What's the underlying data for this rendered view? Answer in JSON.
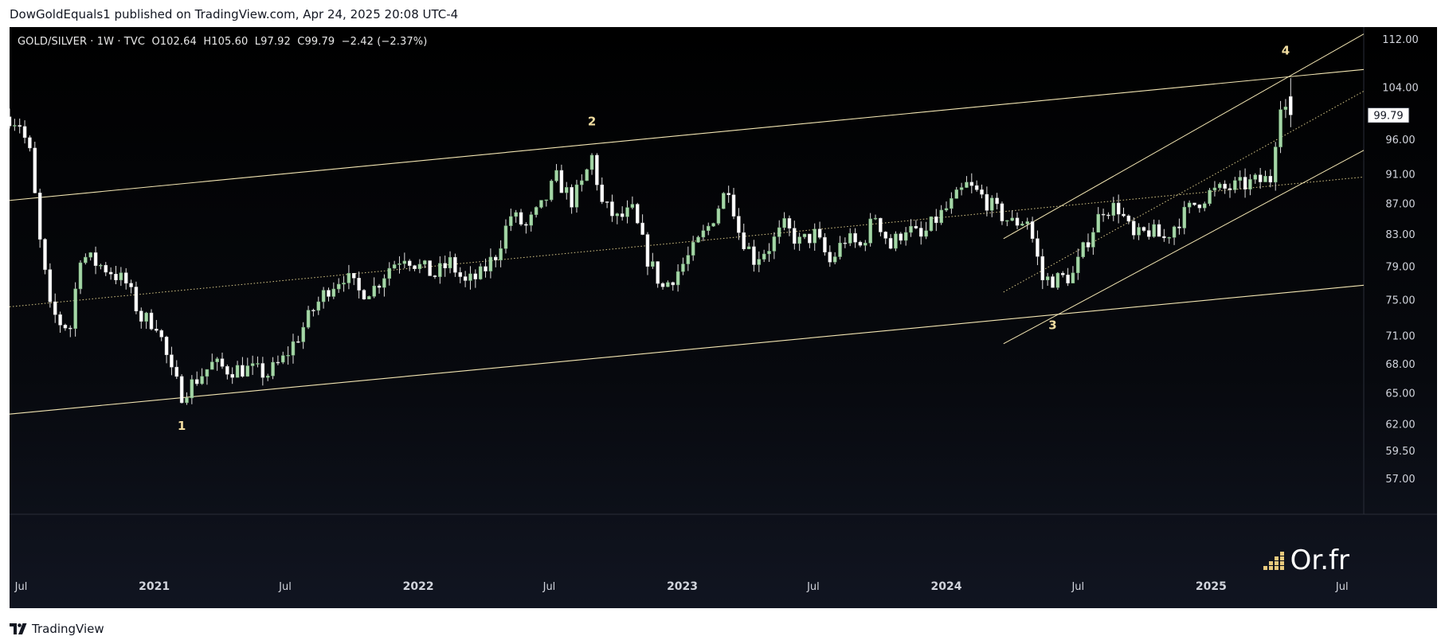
{
  "header": {
    "publisher_line": "DowGoldEquals1 published on TradingView.com, Apr 24, 2025 20:08 UTC-4"
  },
  "legend": {
    "symbol_line": "GOLD/SILVER · 1W · TVC  O102.64  H105.60  L97.92  C99.79  −2.42 (−2.37%)"
  },
  "footer": {
    "brand": "TradingView"
  },
  "watermark": {
    "text": "Or.fr"
  },
  "colors": {
    "up_body": "#a5d6a7",
    "down_body": "#ffffff",
    "wick": "#e0e0e0",
    "trendline": "#f3e6b3",
    "midline": "#d8c98a",
    "axis_text": "#d1d4dc",
    "wave_label": "#f0dca0"
  },
  "chart_data": {
    "type": "candlestick",
    "symbol": "GOLD/SILVER",
    "interval": "1W",
    "exchange": "TVC",
    "last_bar": {
      "open": 102.64,
      "high": 105.6,
      "low": 97.92,
      "close": 99.79,
      "change": -2.42,
      "change_pct": -2.37
    },
    "last_price_label": "99.79",
    "y_axis": {
      "scale": "log",
      "ticks": [
        "112.00",
        "104.00",
        "96.00",
        "91.00",
        "87.00",
        "83.00",
        "79.00",
        "75.00",
        "71.00",
        "68.00",
        "65.00",
        "62.00",
        "59.50",
        "57.00"
      ]
    },
    "x_axis": {
      "range": [
        "2020-06-15",
        "2025-07-31"
      ],
      "labels": [
        {
          "text": "Jul",
          "date": "2020-07-01",
          "bold": false
        },
        {
          "text": "2021",
          "date": "2021-01-01",
          "bold": true
        },
        {
          "text": "Jul",
          "date": "2021-07-01",
          "bold": false
        },
        {
          "text": "2022",
          "date": "2022-01-01",
          "bold": true
        },
        {
          "text": "Jul",
          "date": "2022-07-01",
          "bold": false
        },
        {
          "text": "2023",
          "date": "2023-01-01",
          "bold": true
        },
        {
          "text": "Jul",
          "date": "2023-07-01",
          "bold": false
        },
        {
          "text": "2024",
          "date": "2024-01-01",
          "bold": true
        },
        {
          "text": "Jul",
          "date": "2024-07-01",
          "bold": false
        },
        {
          "text": "2025",
          "date": "2025-01-01",
          "bold": true
        },
        {
          "text": "Jul",
          "date": "2025-07-01",
          "bold": false
        }
      ]
    },
    "close_path": [
      [
        "2020-06-15",
        99.5
      ],
      [
        "2020-06-29",
        98.5
      ],
      [
        "2020-07-13",
        94.0
      ],
      [
        "2020-07-27",
        82.0
      ],
      [
        "2020-08-10",
        74.0
      ],
      [
        "2020-08-24",
        72.5
      ],
      [
        "2020-09-07",
        72.0
      ],
      [
        "2020-09-21",
        80.5
      ],
      [
        "2020-10-12",
        79.5
      ],
      [
        "2020-11-02",
        78.5
      ],
      [
        "2020-11-23",
        77.0
      ],
      [
        "2020-12-14",
        73.0
      ],
      [
        "2021-01-04",
        72.5
      ],
      [
        "2021-01-25",
        67.0
      ],
      [
        "2021-02-08",
        65.0
      ],
      [
        "2021-03-01",
        66.5
      ],
      [
        "2021-03-22",
        68.0
      ],
      [
        "2021-04-12",
        67.5
      ],
      [
        "2021-05-10",
        67.5
      ],
      [
        "2021-06-07",
        67.0
      ],
      [
        "2021-06-28",
        68.5
      ],
      [
        "2021-07-19",
        71.0
      ],
      [
        "2021-08-09",
        74.0
      ],
      [
        "2021-08-30",
        76.5
      ],
      [
        "2021-09-20",
        78.0
      ],
      [
        "2021-10-11",
        76.0
      ],
      [
        "2021-11-01",
        76.5
      ],
      [
        "2021-11-22",
        79.0
      ],
      [
        "2021-12-13",
        80.5
      ],
      [
        "2022-01-03",
        79.0
      ],
      [
        "2022-01-24",
        78.0
      ],
      [
        "2022-02-14",
        79.5
      ],
      [
        "2022-03-07",
        77.0
      ],
      [
        "2022-03-28",
        78.0
      ],
      [
        "2022-04-18",
        80.5
      ],
      [
        "2022-05-09",
        85.5
      ],
      [
        "2022-05-30",
        84.0
      ],
      [
        "2022-06-20",
        86.5
      ],
      [
        "2022-07-11",
        90.5
      ],
      [
        "2022-08-01",
        87.5
      ],
      [
        "2022-08-15",
        89.5
      ],
      [
        "2022-08-29",
        93.5
      ],
      [
        "2022-09-12",
        87.0
      ],
      [
        "2022-10-03",
        85.0
      ],
      [
        "2022-10-24",
        86.0
      ],
      [
        "2022-11-14",
        80.0
      ],
      [
        "2022-12-05",
        76.5
      ],
      [
        "2022-12-26",
        78.5
      ],
      [
        "2023-01-16",
        81.0
      ],
      [
        "2023-02-06",
        84.0
      ],
      [
        "2023-03-06",
        89.5
      ],
      [
        "2023-03-20",
        83.5
      ],
      [
        "2023-04-10",
        80.0
      ],
      [
        "2023-05-01",
        81.5
      ],
      [
        "2023-05-22",
        84.0
      ],
      [
        "2023-06-12",
        82.0
      ],
      [
        "2023-07-03",
        83.0
      ],
      [
        "2023-07-24",
        79.5
      ],
      [
        "2023-08-14",
        82.5
      ],
      [
        "2023-09-04",
        81.5
      ],
      [
        "2023-09-25",
        85.5
      ],
      [
        "2023-10-16",
        81.5
      ],
      [
        "2023-11-06",
        84.0
      ],
      [
        "2023-11-27",
        82.5
      ],
      [
        "2023-12-18",
        85.0
      ],
      [
        "2024-01-08",
        87.0
      ],
      [
        "2024-01-29",
        89.5
      ],
      [
        "2024-02-19",
        88.0
      ],
      [
        "2024-03-11",
        86.0
      ],
      [
        "2024-04-01",
        84.5
      ],
      [
        "2024-04-22",
        85.0
      ],
      [
        "2024-05-13",
        77.5
      ],
      [
        "2024-06-03",
        77.5
      ],
      [
        "2024-06-24",
        78.0
      ],
      [
        "2024-07-15",
        82.5
      ],
      [
        "2024-08-05",
        86.5
      ],
      [
        "2024-08-26",
        86.5
      ],
      [
        "2024-09-16",
        82.5
      ],
      [
        "2024-10-07",
        83.5
      ],
      [
        "2024-10-28",
        82.5
      ],
      [
        "2024-11-18",
        85.0
      ],
      [
        "2024-12-09",
        87.0
      ],
      [
        "2024-12-30",
        88.5
      ],
      [
        "2025-01-20",
        89.0
      ],
      [
        "2025-02-10",
        89.5
      ],
      [
        "2025-03-03",
        90.0
      ],
      [
        "2025-03-24",
        90.5
      ],
      [
        "2025-04-07",
        102.0
      ],
      [
        "2025-04-21",
        99.79
      ]
    ],
    "channel": {
      "upper": [
        [
          "2020-06-15",
          87.5
        ],
        [
          "2025-07-31",
          107.0
        ]
      ],
      "lower": [
        [
          "2020-06-15",
          63.0
        ],
        [
          "2025-07-31",
          76.8
        ]
      ],
      "mid": [
        [
          "2020-06-15",
          74.3
        ],
        [
          "2025-07-31",
          90.7
        ]
      ]
    },
    "sub_channel": {
      "upper": [
        [
          "2024-03-20",
          82.5
        ],
        [
          "2025-07-31",
          113.0
        ]
      ],
      "lower": [
        [
          "2024-03-20",
          70.2
        ],
        [
          "2025-07-31",
          94.5
        ]
      ],
      "mid": [
        [
          "2024-03-20",
          76.0
        ],
        [
          "2025-07-31",
          103.5
        ]
      ]
    },
    "wave_labels": [
      {
        "text": "1",
        "date": "2021-02-08",
        "price": 61.5
      },
      {
        "text": "2",
        "date": "2022-08-29",
        "price": 98.2
      },
      {
        "text": "3",
        "date": "2024-05-27",
        "price": 71.8
      },
      {
        "text": "4",
        "date": "2025-04-14",
        "price": 109.5
      }
    ]
  }
}
